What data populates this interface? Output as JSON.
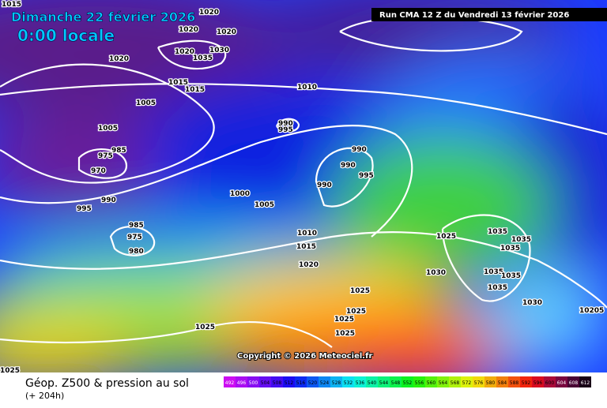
{
  "header": {
    "date": "Dimanche 22 février 2026",
    "time": "0:00 locale",
    "run": "Run CMA 12 Z du Vendredi 13 février 2026"
  },
  "copyright": "Copyright © 2026 Meteociel.fr",
  "footer": {
    "title": "Géop. Z500 & pression au sol",
    "lead": "(+ 204h)"
  },
  "scale": [
    492,
    496,
    500,
    504,
    508,
    512,
    516,
    520,
    524,
    528,
    532,
    536,
    540,
    544,
    548,
    552,
    556,
    560,
    564,
    568,
    572,
    576,
    580,
    584,
    588,
    592,
    596,
    600,
    604,
    608,
    612
  ],
  "isobar_labels": [
    "1015",
    "1020",
    "1020",
    "1020",
    "1020",
    "1020",
    "1035",
    "1030",
    "1015",
    "1015",
    "1010",
    "1005",
    "990",
    "995",
    "1005",
    "985",
    "975",
    "970",
    "990",
    "990",
    "995",
    "990",
    "990",
    "995",
    "1000",
    "1005",
    "985",
    "975",
    "980",
    "1010",
    "1015",
    "1020",
    "1025",
    "1030",
    "1035",
    "1035",
    "1035",
    "1035",
    "1035",
    "1035",
    "1030",
    "1025",
    "1025",
    "1025",
    "1025",
    "1025",
    "1025",
    "10205"
  ]
}
